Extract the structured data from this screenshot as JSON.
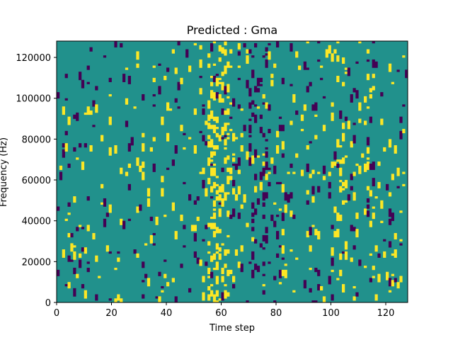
{
  "chart_data": {
    "type": "heatmap",
    "title": "Predicted : Gma",
    "xlabel": "Time step",
    "ylabel": "Frequency (Hz)",
    "xlim": [
      0,
      128
    ],
    "ylim": [
      0,
      128000
    ],
    "x_ticks": [
      0,
      20,
      40,
      60,
      80,
      100,
      120
    ],
    "y_ticks": [
      0,
      20000,
      40000,
      60000,
      80000,
      100000,
      120000
    ],
    "grid": false,
    "legend": "none",
    "colors": {
      "background": "#21918c",
      "high": "#fde725",
      "low": "#440154"
    },
    "columns": 128,
    "rows": 128
  }
}
